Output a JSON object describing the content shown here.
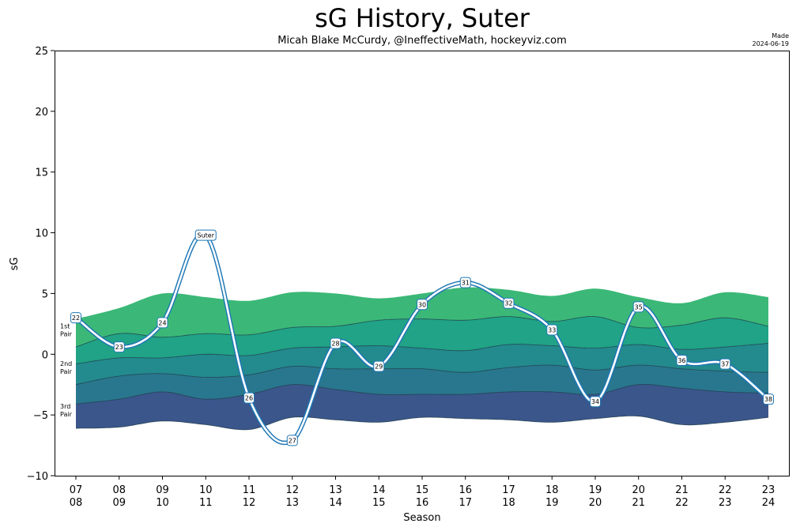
{
  "header": {
    "title": "sG History, Suter",
    "subtitle": "Micah Blake McCurdy, @IneffectiveMath, hockeyviz.com",
    "made_label": "Made",
    "made_date": "2024-06-19"
  },
  "colors": {
    "top_band": "#3bb877",
    "band_2": "#20a386",
    "band_3": "#238a8d",
    "band_4": "#29778e",
    "band_5": "#33638d",
    "bottom_band": "#3a568b",
    "line": "#1f77b4"
  },
  "chart_data": {
    "type": "area",
    "title": "sG History, Suter",
    "xlabel": "Season",
    "ylabel": "sG",
    "ylim": [
      -10,
      25
    ],
    "yticks": [
      -10,
      -5,
      0,
      5,
      10,
      15,
      20,
      25
    ],
    "grid": false,
    "categories": [
      {
        "top": "07",
        "bottom": "08"
      },
      {
        "top": "08",
        "bottom": "09"
      },
      {
        "top": "09",
        "bottom": "10"
      },
      {
        "top": "10",
        "bottom": "11"
      },
      {
        "top": "11",
        "bottom": "12"
      },
      {
        "top": "12",
        "bottom": "13"
      },
      {
        "top": "13",
        "bottom": "14"
      },
      {
        "top": "14",
        "bottom": "15"
      },
      {
        "top": "15",
        "bottom": "16"
      },
      {
        "top": "16",
        "bottom": "17"
      },
      {
        "top": "17",
        "bottom": "18"
      },
      {
        "top": "18",
        "bottom": "19"
      },
      {
        "top": "19",
        "bottom": "20"
      },
      {
        "top": "20",
        "bottom": "21"
      },
      {
        "top": "21",
        "bottom": "22"
      },
      {
        "top": "22",
        "bottom": "23"
      },
      {
        "top": "23",
        "bottom": "24"
      }
    ],
    "band_boundaries": [
      [
        2.9,
        3.8,
        5.0,
        4.7,
        4.4,
        5.1,
        5.0,
        4.6,
        5.0,
        5.5,
        5.3,
        4.8,
        5.4,
        4.7,
        4.2,
        5.1,
        4.7
      ],
      [
        0.6,
        1.7,
        1.4,
        1.7,
        1.6,
        2.2,
        2.3,
        2.8,
        2.9,
        2.8,
        3.1,
        2.7,
        3.1,
        2.2,
        2.4,
        3.0,
        2.3
      ],
      [
        -0.8,
        -0.3,
        -0.3,
        0.0,
        -0.1,
        0.5,
        0.6,
        0.7,
        0.5,
        0.3,
        0.8,
        0.7,
        0.5,
        0.8,
        0.4,
        0.6,
        0.9
      ],
      [
        -2.5,
        -1.8,
        -1.6,
        -1.9,
        -1.7,
        -1.0,
        -1.2,
        -1.2,
        -1.2,
        -1.5,
        -1.1,
        -0.9,
        -1.3,
        -0.9,
        -1.2,
        -1.4,
        -1.5
      ],
      [
        -4.1,
        -3.7,
        -3.1,
        -3.7,
        -3.3,
        -2.5,
        -2.9,
        -3.3,
        -3.3,
        -3.3,
        -3.1,
        -3.1,
        -3.3,
        -2.5,
        -2.8,
        -3.1,
        -3.2
      ],
      [
        -6.1,
        -6.0,
        -5.5,
        -5.8,
        -6.2,
        -5.2,
        -5.4,
        -5.6,
        -5.2,
        -5.3,
        -5.4,
        -5.6,
        -5.3,
        -5.1,
        -5.8,
        -5.6,
        -5.2
      ]
    ],
    "band_labels": [
      {
        "line1": "1st",
        "line2": "Pair",
        "y": 2.0
      },
      {
        "line1": "2nd",
        "line2": "Pair",
        "y": -1.1
      },
      {
        "line1": "3rd",
        "line2": "Pair",
        "y": -4.6
      }
    ],
    "series": [
      {
        "name": "Suter",
        "values": [
          3.0,
          0.6,
          2.6,
          9.8,
          -3.6,
          -7.1,
          0.9,
          -1.0,
          4.1,
          5.9,
          4.2,
          2.0,
          -3.9,
          3.9,
          -0.5,
          -0.8,
          -3.7
        ],
        "point_labels": [
          "22",
          "23",
          "24",
          "Suter",
          "26",
          "27",
          "28",
          "29",
          "30",
          "31",
          "32",
          "33",
          "34",
          "35",
          "36",
          "37",
          "38"
        ]
      }
    ]
  }
}
